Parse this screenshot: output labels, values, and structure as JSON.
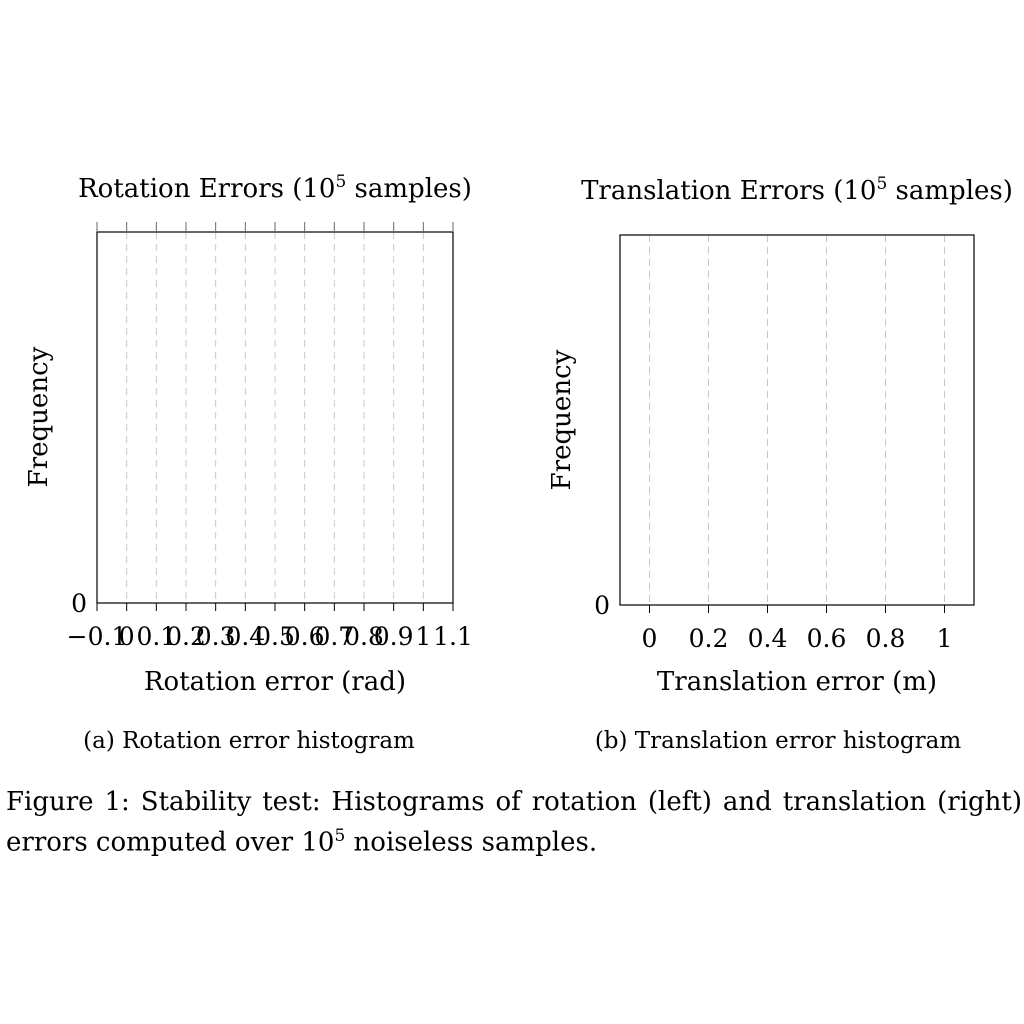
{
  "chart_data": [
    {
      "type": "bar",
      "title_prefix": "Rotation Errors (10",
      "title_sup": "5",
      "title_suffix": " samples)",
      "xlabel": "Rotation error (rad)",
      "ylabel": "Frequency",
      "xlim": [
        -0.1,
        1.1
      ],
      "x_ticks": [
        -0.1,
        0,
        0.1,
        0.2,
        0.3,
        0.4,
        0.5,
        0.6,
        0.7,
        0.8,
        0.9,
        1,
        1.1
      ],
      "x_tick_labels": [
        "−0.1",
        "0",
        "0.1",
        "0.2",
        "0.3",
        "0.4",
        "0.5",
        "0.6",
        "0.7",
        "0.8",
        "0.9",
        "1",
        "1.1"
      ],
      "y_ticks": [
        0
      ],
      "y_tick_labels": [
        "0"
      ],
      "grid": "vertical dashed",
      "bins": [],
      "values": [],
      "caption": "(a) Rotation error histogram"
    },
    {
      "type": "bar",
      "title_prefix": "Translation Errors (10",
      "title_sup": "5",
      "title_suffix": " samples)",
      "xlabel": "Translation error (m)",
      "ylabel": "Frequency",
      "xlim": [
        -0.1,
        1.1
      ],
      "x_ticks": [
        0,
        0.2,
        0.4,
        0.6,
        0.8,
        1
      ],
      "x_tick_labels": [
        "0",
        "0.2",
        "0.4",
        "0.6",
        "0.8",
        "1"
      ],
      "y_ticks": [
        0
      ],
      "y_tick_labels": [
        "0"
      ],
      "grid": "vertical dashed",
      "bins": [],
      "values": [],
      "caption": "(b) Translation error histogram"
    }
  ],
  "figure_caption": {
    "prefix": "Figure 1:  Stability test:  Histograms of rotation (left) and translation (right) errors computed over 10",
    "sup": "5",
    "suffix": " noiseless samples."
  },
  "colors": {
    "axis": "#000000",
    "grid": "#c8c8c8"
  }
}
